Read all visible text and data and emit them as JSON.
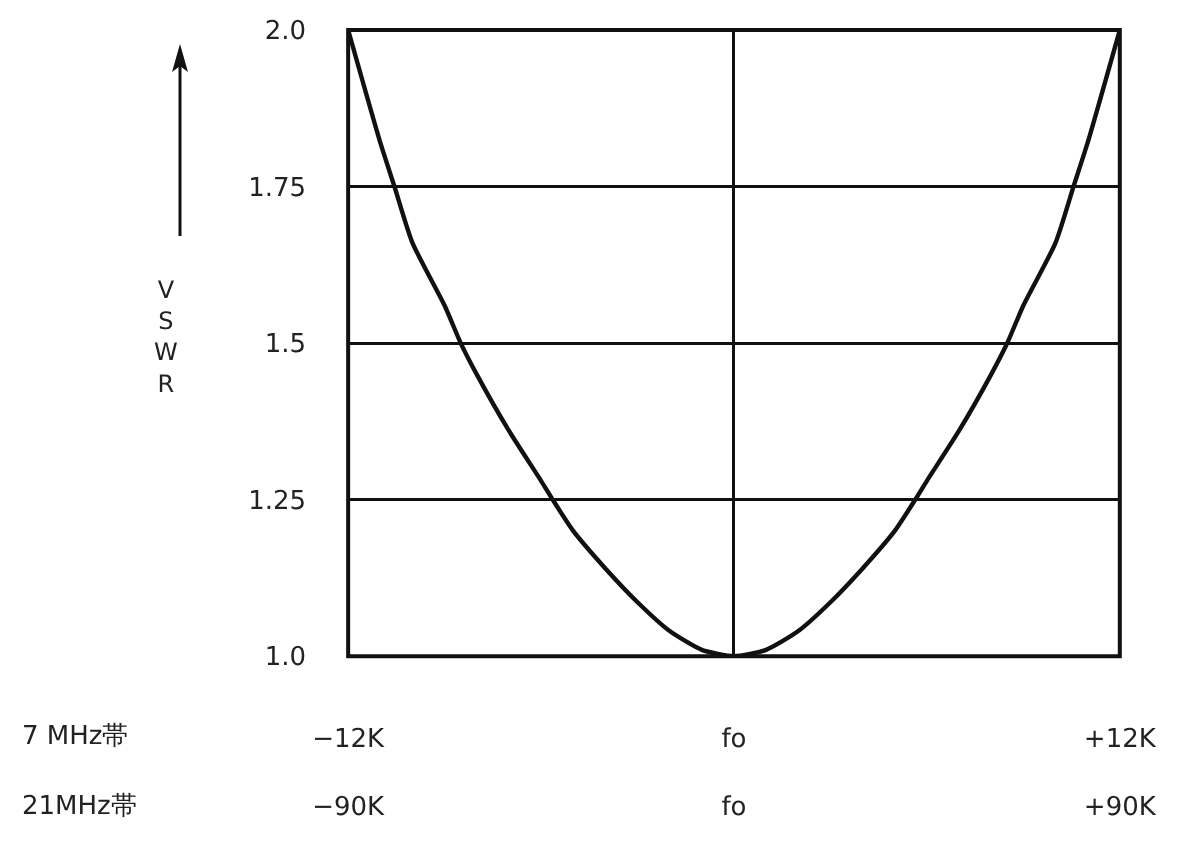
{
  "chart_data": {
    "type": "line",
    "xlabel": "7 MHz帯",
    "x2label": "21MHz帯",
    "ylabel": "VSWR",
    "x": [
      -12,
      -11,
      -10.56,
      -10,
      -9,
      -8.5,
      -8,
      -7,
      -6,
      -5.64,
      -5,
      -4,
      -3,
      -2,
      -1,
      0,
      1,
      2,
      3,
      4,
      5,
      5.64,
      6,
      7,
      8,
      8.5,
      9,
      10,
      10.56,
      11,
      12
    ],
    "series": [
      {
        "color": "#111111",
        "values": [
          2.0,
          1.82,
          1.75,
          1.66,
          1.56,
          1.5,
          1.45,
          1.36,
          1.28,
          1.25,
          1.2,
          1.14,
          1.086,
          1.04,
          1.01,
          1.0,
          1.01,
          1.04,
          1.086,
          1.14,
          1.2,
          1.25,
          1.28,
          1.36,
          1.45,
          1.5,
          1.56,
          1.66,
          1.75,
          1.82,
          2.0
        ]
      }
    ],
    "xlim": [
      -12,
      12
    ],
    "xticks": [
      {
        "value": -12,
        "label": "−12K"
      },
      {
        "value": 0,
        "label": "fo"
      },
      {
        "value": 12,
        "label": "+12K"
      }
    ],
    "x2lim": [
      -90,
      90
    ],
    "x2ticks": [
      {
        "value": -90,
        "label": "−90K"
      },
      {
        "value": 0,
        "label": "fo"
      },
      {
        "value": 90,
        "label": "+90K"
      }
    ],
    "ylim": [
      1.0,
      2.0
    ],
    "yticks": [
      {
        "value": 1.0,
        "label": "1.0"
      },
      1.25,
      1.5,
      1.75,
      {
        "value": 2.0,
        "label": "2.0"
      }
    ],
    "grid": true,
    "marker": "none",
    "line_style": "solid"
  }
}
